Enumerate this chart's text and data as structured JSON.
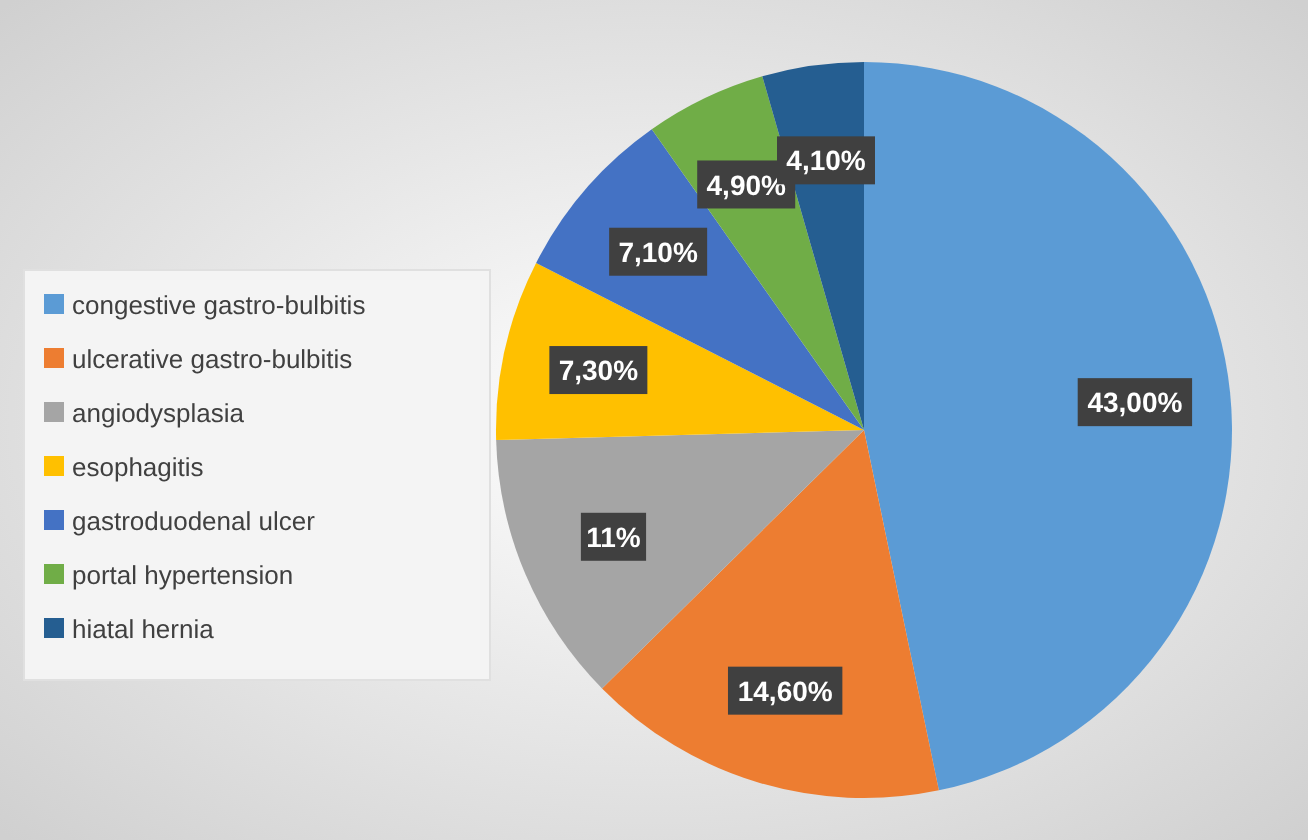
{
  "chart_data": {
    "type": "pie",
    "categories": [
      "congestive gastro-bulbitis",
      "ulcerative gastro-bulbitis",
      "angiodysplasia",
      "esophagitis",
      "gastroduodenal ulcer",
      "portal hypertension",
      "hiatal hernia"
    ],
    "values": [
      43,
      14.6,
      11,
      7.3,
      7.1,
      4.9,
      4.1
    ],
    "value_labels": [
      "43,00%",
      "14,60%",
      "11%",
      "7,30%",
      "7,10%",
      "4,90%",
      "4,10%"
    ],
    "colors": [
      "#5b9bd5",
      "#ed7d31",
      "#a5a5a5",
      "#ffc000",
      "#4472c4",
      "#70ad47",
      "#255e91"
    ],
    "legend": "left"
  }
}
